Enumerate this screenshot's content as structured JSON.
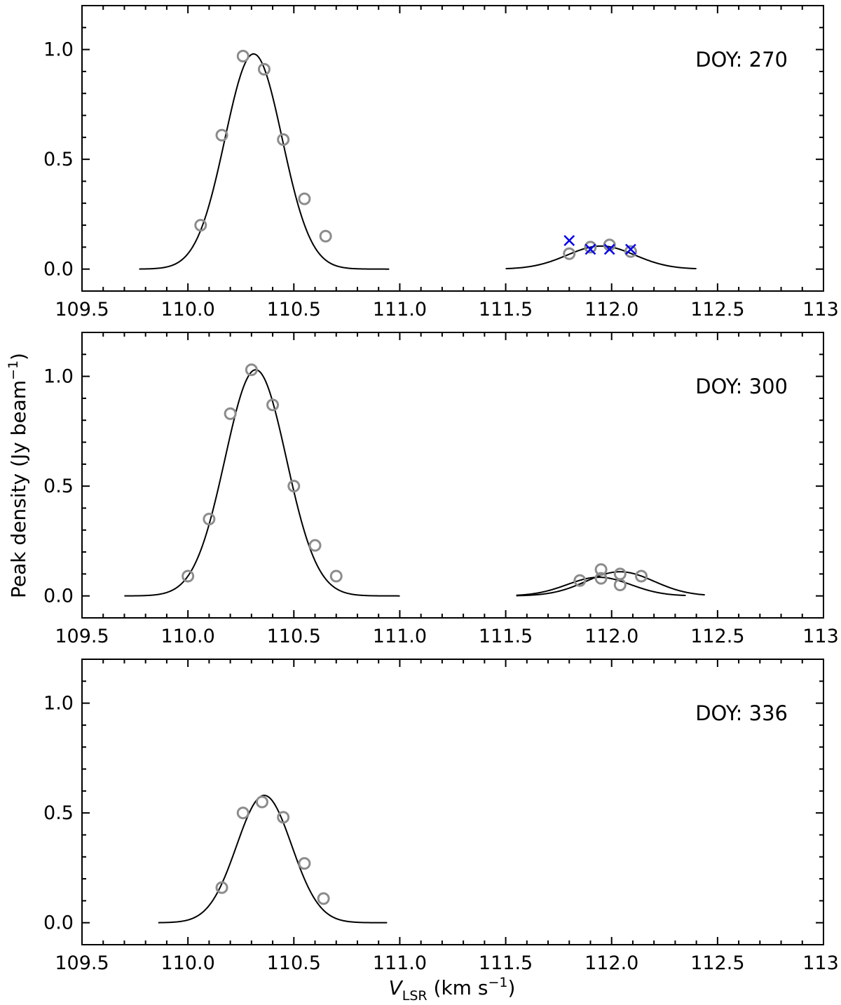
{
  "figure": {
    "ylabel": "Peak density (Jy beam",
    "ylabel_sup": "−1",
    "ylabel_tail": ")",
    "xlabel_main": "V",
    "xlabel_sub": "LSR",
    "xlabel_unit": " (km s",
    "xlabel_unit_sup": "−1",
    "xlabel_unit_tail": ")"
  },
  "colors": {
    "marker_gray": "#8c8c8c",
    "marker_blue": "#0000ee",
    "fit_line": "#000000"
  },
  "chart_data": [
    {
      "type": "scatter",
      "annotation": "DOY: 270",
      "xlim": [
        109.5,
        113.0
      ],
      "ylim": [
        -0.1,
        1.2
      ],
      "x_ticks": [
        "109.5",
        "110.0",
        "110.5",
        "111.0",
        "111.5",
        "112.0",
        "112.5",
        "113"
      ],
      "y_ticks": [
        "0.0",
        "0.5",
        "1.0"
      ],
      "points_circle": [
        {
          "x": 110.06,
          "y": 0.2
        },
        {
          "x": 110.16,
          "y": 0.61
        },
        {
          "x": 110.26,
          "y": 0.97
        },
        {
          "x": 110.36,
          "y": 0.91
        },
        {
          "x": 110.45,
          "y": 0.59
        },
        {
          "x": 110.55,
          "y": 0.32
        },
        {
          "x": 110.65,
          "y": 0.15
        },
        {
          "x": 111.8,
          "y": 0.07
        },
        {
          "x": 111.9,
          "y": 0.1
        },
        {
          "x": 111.99,
          "y": 0.11
        },
        {
          "x": 112.09,
          "y": 0.08
        }
      ],
      "points_cross": [
        {
          "x": 111.8,
          "y": 0.13
        },
        {
          "x": 111.9,
          "y": 0.09
        },
        {
          "x": 111.99,
          "y": 0.09
        },
        {
          "x": 112.09,
          "y": 0.09
        }
      ],
      "fits": [
        {
          "amp": 0.98,
          "center": 110.31,
          "sigma": 0.135,
          "xmin": 109.77,
          "xmax": 110.95
        },
        {
          "amp": 0.105,
          "center": 111.95,
          "sigma": 0.16,
          "xmin": 111.5,
          "xmax": 112.4
        }
      ]
    },
    {
      "type": "scatter",
      "annotation": "DOY: 300",
      "xlim": [
        109.5,
        113.0
      ],
      "ylim": [
        -0.1,
        1.2
      ],
      "x_ticks": [
        "109.5",
        "110.0",
        "110.5",
        "111.0",
        "111.5",
        "112.0",
        "112.5",
        "113"
      ],
      "y_ticks": [
        "0.0",
        "0.5",
        "1.0"
      ],
      "points_circle": [
        {
          "x": 110.0,
          "y": 0.09
        },
        {
          "x": 110.1,
          "y": 0.35
        },
        {
          "x": 110.2,
          "y": 0.83
        },
        {
          "x": 110.3,
          "y": 1.03
        },
        {
          "x": 110.4,
          "y": 0.87
        },
        {
          "x": 110.5,
          "y": 0.5
        },
        {
          "x": 110.6,
          "y": 0.23
        },
        {
          "x": 110.7,
          "y": 0.09
        },
        {
          "x": 111.85,
          "y": 0.07
        },
        {
          "x": 111.95,
          "y": 0.12
        },
        {
          "x": 111.95,
          "y": 0.08
        },
        {
          "x": 112.04,
          "y": 0.1
        },
        {
          "x": 112.04,
          "y": 0.05
        },
        {
          "x": 112.14,
          "y": 0.09
        }
      ],
      "points_cross": [],
      "fits": [
        {
          "amp": 1.03,
          "center": 110.32,
          "sigma": 0.145,
          "xmin": 109.7,
          "xmax": 111.0
        },
        {
          "amp": 0.085,
          "center": 111.94,
          "sigma": 0.15,
          "xmin": 111.55,
          "xmax": 112.35
        },
        {
          "amp": 0.11,
          "center": 112.04,
          "sigma": 0.16,
          "xmin": 111.55,
          "xmax": 112.44
        }
      ]
    },
    {
      "type": "scatter",
      "annotation": "DOY: 336",
      "xlim": [
        109.5,
        113.0
      ],
      "ylim": [
        -0.1,
        1.2
      ],
      "x_ticks": [
        "109.5",
        "110.0",
        "110.5",
        "111.0",
        "111.5",
        "112.0",
        "112.5",
        "113"
      ],
      "y_ticks": [
        "0.0",
        "0.5",
        "1.0"
      ],
      "points_circle": [
        {
          "x": 110.16,
          "y": 0.16
        },
        {
          "x": 110.26,
          "y": 0.5
        },
        {
          "x": 110.35,
          "y": 0.55
        },
        {
          "x": 110.45,
          "y": 0.48
        },
        {
          "x": 110.55,
          "y": 0.27
        },
        {
          "x": 110.64,
          "y": 0.11
        }
      ],
      "points_cross": [],
      "fits": [
        {
          "amp": 0.58,
          "center": 110.36,
          "sigma": 0.13,
          "xmin": 109.86,
          "xmax": 110.94
        }
      ]
    }
  ]
}
